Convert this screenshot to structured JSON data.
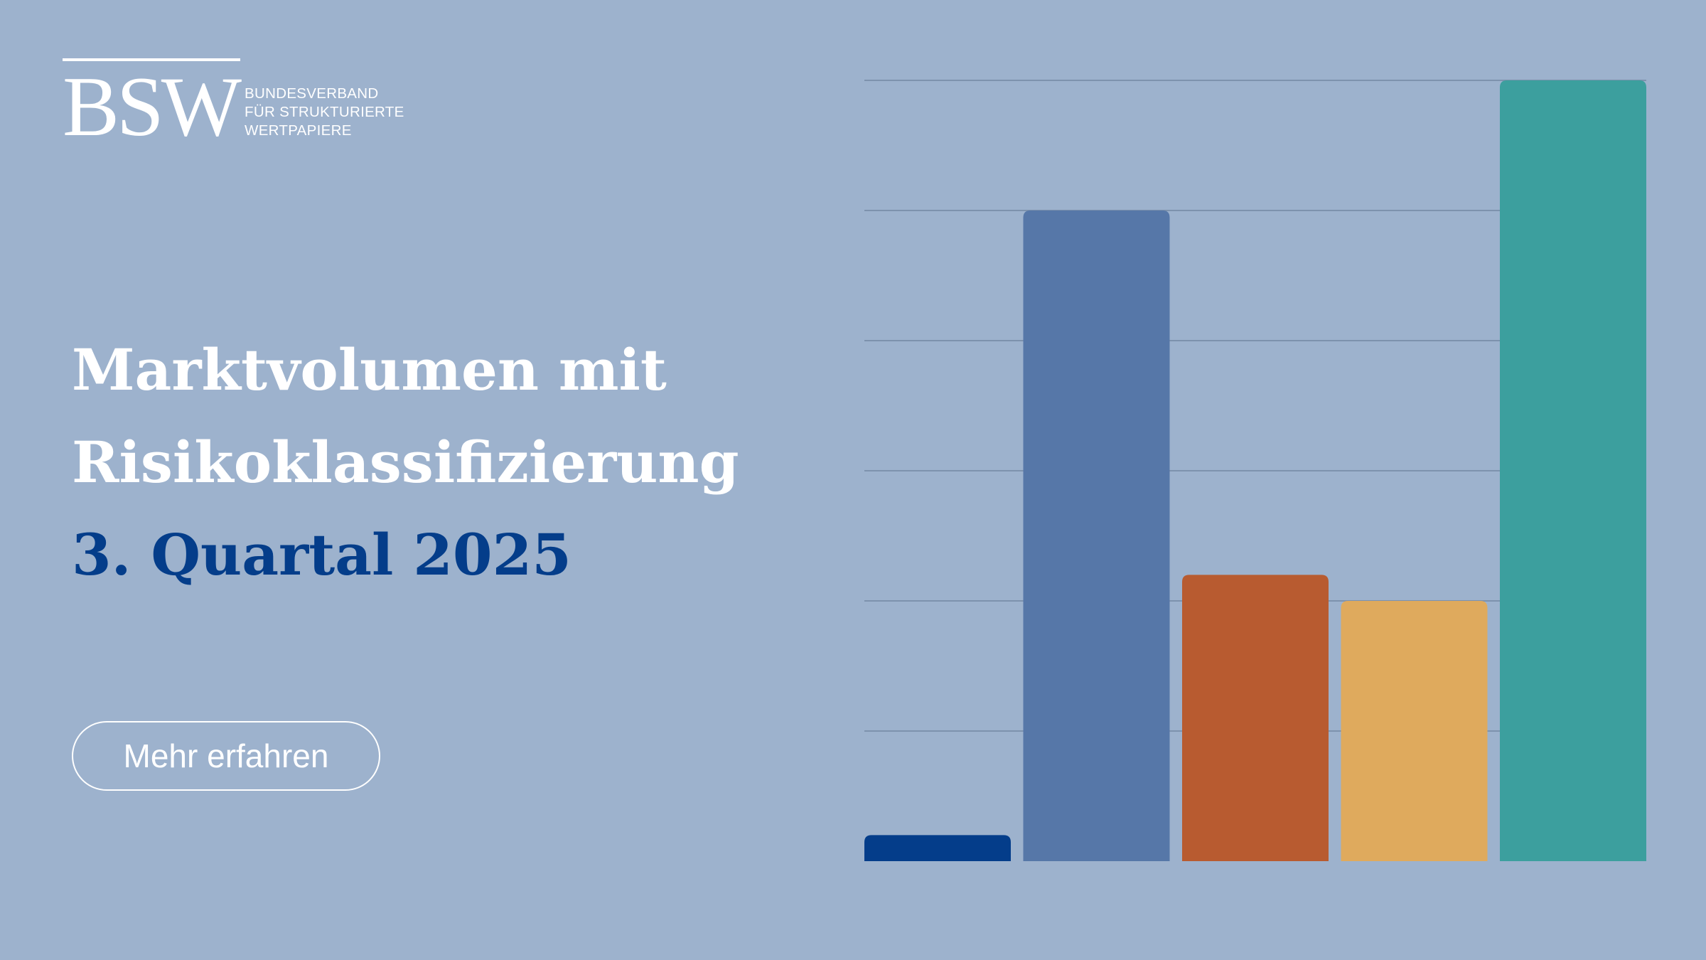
{
  "logo": {
    "mark": "BSW",
    "lines": [
      "BUNDESVERBAND",
      "FÜR STRUKTURIERTE",
      "WERTPAPIERE"
    ]
  },
  "headline": {
    "line1": "Marktvolumen mit",
    "line2": "Risikoklassifizierung",
    "line3": "3. Quartal 2025"
  },
  "cta": {
    "label": "Mehr erfahren"
  },
  "colors": {
    "background": "#9db2cd",
    "headline_white": "#ffffff",
    "headline_blue": "#043d8a",
    "gridline": "#7d92ad"
  },
  "chart_data": {
    "type": "bar",
    "grid": true,
    "ylim": [
      0,
      6
    ],
    "values": [
      0.2,
      5.0,
      2.2,
      2.0,
      6.0
    ],
    "colors": [
      "#043d8a",
      "#5677a8",
      "#b85b30",
      "#dfaa5d",
      "#3c9f9e"
    ]
  }
}
